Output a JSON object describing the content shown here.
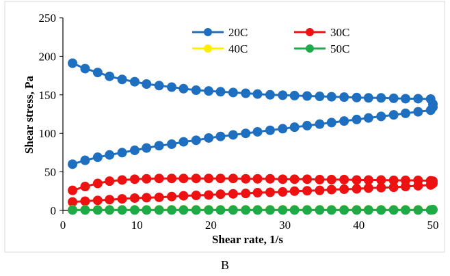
{
  "chart_data": {
    "type": "scatter",
    "xlabel": "Shear rate, 1/s",
    "ylabel": "Shear stress, Pa",
    "xlim": [
      0,
      50
    ],
    "ylim": [
      0,
      250
    ],
    "x_ticks": [
      "0",
      "10",
      "20",
      "30",
      "40",
      "50"
    ],
    "y_ticks": [
      "0",
      "50",
      "100",
      "150",
      "200",
      "250"
    ],
    "grid": false,
    "legend_position": "top-right, two columns",
    "series": [
      {
        "name": "20C",
        "color": "#1F6FC0",
        "upward": [
          [
            1.3,
            60
          ],
          [
            3,
            65
          ],
          [
            4.7,
            69
          ],
          [
            6.3,
            72
          ],
          [
            8,
            75
          ],
          [
            9.7,
            78
          ],
          [
            11.3,
            81
          ],
          [
            13,
            84
          ],
          [
            14.7,
            86
          ],
          [
            16.3,
            89
          ],
          [
            18,
            91
          ],
          [
            19.7,
            94
          ],
          [
            21.3,
            96
          ],
          [
            23,
            98
          ],
          [
            24.7,
            100
          ],
          [
            26.3,
            102
          ],
          [
            28,
            104
          ],
          [
            29.7,
            106
          ],
          [
            31.3,
            108
          ],
          [
            33,
            110
          ],
          [
            34.7,
            112
          ],
          [
            36.3,
            114
          ],
          [
            38,
            116
          ],
          [
            39.7,
            118
          ],
          [
            41.3,
            120
          ],
          [
            43,
            122
          ],
          [
            44.7,
            124
          ],
          [
            46.3,
            126
          ],
          [
            48,
            128
          ],
          [
            49.7,
            130
          ],
          [
            50,
            134
          ]
        ],
        "downward": [
          [
            1.3,
            191
          ],
          [
            3,
            184
          ],
          [
            4.7,
            179
          ],
          [
            6.3,
            174
          ],
          [
            8,
            170
          ],
          [
            9.7,
            167
          ],
          [
            11.3,
            164
          ],
          [
            13,
            162
          ],
          [
            14.7,
            160
          ],
          [
            16.3,
            158
          ],
          [
            18,
            156
          ],
          [
            19.7,
            155
          ],
          [
            21.3,
            154
          ],
          [
            23,
            153
          ],
          [
            24.7,
            152
          ],
          [
            26.3,
            151
          ],
          [
            28,
            150
          ],
          [
            29.7,
            149.5
          ],
          [
            31.3,
            149
          ],
          [
            33,
            148.5
          ],
          [
            34.7,
            148
          ],
          [
            36.3,
            147.5
          ],
          [
            38,
            147
          ],
          [
            39.7,
            146.5
          ],
          [
            41.3,
            146
          ],
          [
            43,
            146
          ],
          [
            44.7,
            145.5
          ],
          [
            46.3,
            145
          ],
          [
            48,
            145
          ],
          [
            49.7,
            144.5
          ],
          [
            50,
            138
          ]
        ]
      },
      {
        "name": "30C",
        "color": "#EE1111",
        "upward": [
          [
            1.3,
            11
          ],
          [
            3,
            12
          ],
          [
            4.7,
            13
          ],
          [
            6.3,
            14
          ],
          [
            8,
            15
          ],
          [
            9.7,
            16
          ],
          [
            11.3,
            16.5
          ],
          [
            13,
            17
          ],
          [
            14.7,
            18
          ],
          [
            16.3,
            19
          ],
          [
            18,
            19.5
          ],
          [
            19.7,
            20
          ],
          [
            21.3,
            21
          ],
          [
            23,
            21.5
          ],
          [
            24.7,
            22
          ],
          [
            26.3,
            23
          ],
          [
            28,
            23.5
          ],
          [
            29.7,
            24
          ],
          [
            31.3,
            25
          ],
          [
            33,
            25.5
          ],
          [
            34.7,
            26
          ],
          [
            36.3,
            27
          ],
          [
            38,
            27.5
          ],
          [
            39.7,
            28
          ],
          [
            41.3,
            29
          ],
          [
            43,
            29.5
          ],
          [
            44.7,
            30
          ],
          [
            46.3,
            31
          ],
          [
            48,
            32
          ],
          [
            49.7,
            33
          ],
          [
            50,
            35
          ]
        ],
        "downward": [
          [
            1.3,
            26
          ],
          [
            3,
            31
          ],
          [
            4.7,
            35
          ],
          [
            6.3,
            38
          ],
          [
            8,
            39.5
          ],
          [
            9.7,
            40.5
          ],
          [
            11.3,
            41
          ],
          [
            13,
            41.5
          ],
          [
            14.7,
            41.5
          ],
          [
            16.3,
            41.5
          ],
          [
            18,
            41.5
          ],
          [
            19.7,
            41.5
          ],
          [
            21.3,
            41.5
          ],
          [
            23,
            41.5
          ],
          [
            24.7,
            41
          ],
          [
            26.3,
            41
          ],
          [
            28,
            41
          ],
          [
            29.7,
            40.5
          ],
          [
            31.3,
            40.5
          ],
          [
            33,
            40.5
          ],
          [
            34.7,
            40
          ],
          [
            36.3,
            40
          ],
          [
            38,
            40
          ],
          [
            39.7,
            39.5
          ],
          [
            41.3,
            39.5
          ],
          [
            43,
            39.5
          ],
          [
            44.7,
            39
          ],
          [
            46.3,
            39
          ],
          [
            48,
            39
          ],
          [
            49.7,
            38.5
          ],
          [
            50,
            38
          ]
        ]
      },
      {
        "name": "40C",
        "color": "#FFEE00",
        "upward": [
          [
            1.3,
            0.8
          ],
          [
            3,
            0.8
          ],
          [
            4.7,
            0.8
          ],
          [
            6.3,
            0.8
          ],
          [
            8,
            0.8
          ],
          [
            9.7,
            0.8
          ],
          [
            11.3,
            0.8
          ],
          [
            13,
            0.8
          ],
          [
            14.7,
            0.8
          ],
          [
            16.3,
            0.8
          ],
          [
            18,
            0.8
          ],
          [
            19.7,
            0.8
          ],
          [
            21.3,
            0.8
          ],
          [
            23,
            0.8
          ],
          [
            24.7,
            0.8
          ],
          [
            26.3,
            0.8
          ],
          [
            28,
            0.8
          ],
          [
            29.7,
            0.8
          ],
          [
            31.3,
            0.8
          ],
          [
            33,
            0.8
          ],
          [
            34.7,
            0.8
          ],
          [
            36.3,
            0.8
          ],
          [
            38,
            0.8
          ],
          [
            39.7,
            0.8
          ],
          [
            41.3,
            0.8
          ],
          [
            43,
            0.8
          ],
          [
            44.7,
            0.8
          ],
          [
            46.3,
            0.8
          ],
          [
            48,
            0.8
          ],
          [
            49.7,
            0.8
          ],
          [
            50,
            1
          ]
        ],
        "downward": []
      },
      {
        "name": "50C",
        "color": "#1FAA4A",
        "upward": [
          [
            1.3,
            0.5
          ],
          [
            3,
            0.5
          ],
          [
            4.7,
            0.5
          ],
          [
            6.3,
            0.5
          ],
          [
            8,
            0.5
          ],
          [
            9.7,
            0.5
          ],
          [
            11.3,
            0.5
          ],
          [
            13,
            0.5
          ],
          [
            14.7,
            0.5
          ],
          [
            16.3,
            0.5
          ],
          [
            18,
            0.5
          ],
          [
            19.7,
            0.5
          ],
          [
            21.3,
            0.5
          ],
          [
            23,
            0.5
          ],
          [
            24.7,
            0.5
          ],
          [
            26.3,
            0.5
          ],
          [
            28,
            0.5
          ],
          [
            29.7,
            0.5
          ],
          [
            31.3,
            0.5
          ],
          [
            33,
            0.5
          ],
          [
            34.7,
            0.5
          ],
          [
            36.3,
            0.5
          ],
          [
            38,
            0.5
          ],
          [
            39.7,
            0.5
          ],
          [
            41.3,
            0.5
          ],
          [
            43,
            0.5
          ],
          [
            44.7,
            0.5
          ],
          [
            46.3,
            0.5
          ],
          [
            48,
            0.5
          ],
          [
            49.7,
            0.5
          ],
          [
            50,
            1
          ]
        ],
        "downward": []
      }
    ]
  },
  "caption": "B"
}
